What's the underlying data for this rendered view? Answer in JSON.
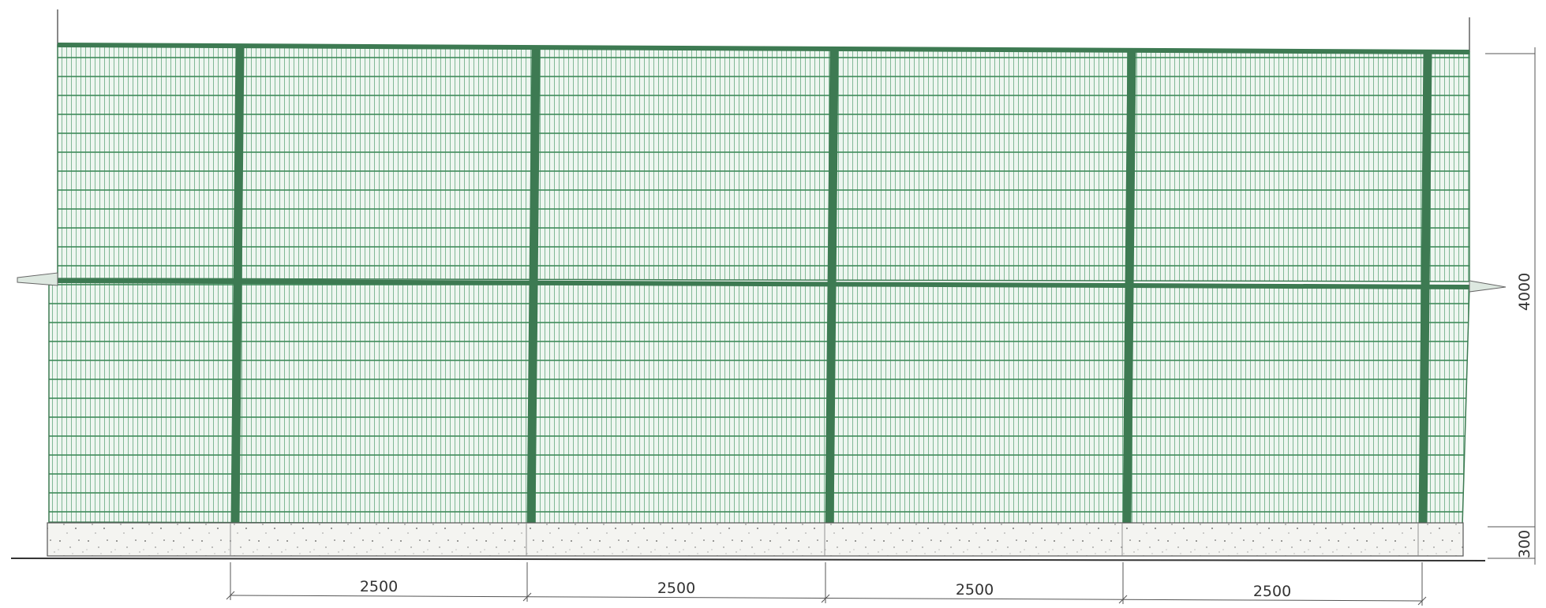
{
  "diagram": {
    "type": "fence-elevation",
    "panel_count": 4,
    "dimensions": {
      "spans": [
        "2500",
        "2500",
        "2500",
        "2500"
      ],
      "height": "4000",
      "base_height": "300"
    },
    "colors": {
      "mesh": "#4c9a6a",
      "mesh_light": "#c5dfcc",
      "posts": "#3d7a52",
      "base_fill": "#f2f2ef",
      "base_specks": "#555555",
      "lines": "#444444",
      "background": "#ffffff"
    }
  }
}
